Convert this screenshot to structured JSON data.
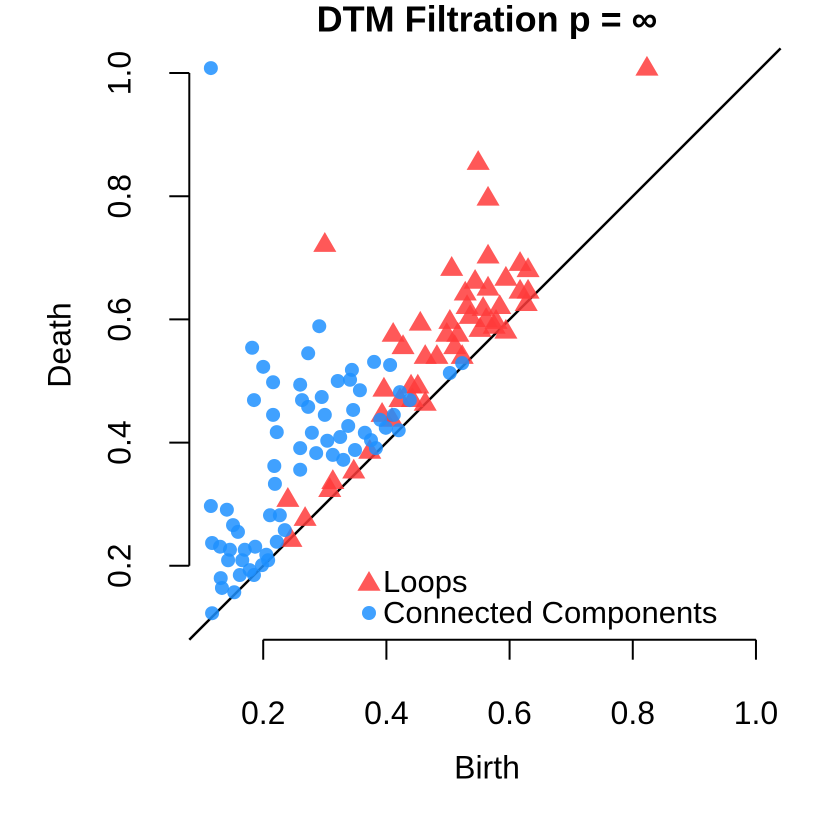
{
  "chart_data": {
    "type": "scatter",
    "title": "DTM Filtration p = ∞",
    "xlabel": "Birth",
    "ylabel": "Death",
    "xlim": [
      0.08,
      1.04
    ],
    "ylim": [
      0.08,
      1.04
    ],
    "xticks": [
      0.2,
      0.4,
      0.6,
      0.8,
      {
        "value": 1,
        "label": "1.0"
      }
    ],
    "yticks": [
      0.2,
      0.4,
      0.6,
      0.8,
      {
        "value": 1,
        "label": "1.0"
      }
    ],
    "legend": "bottom",
    "series": [
      {
        "name": "Loops",
        "color": "#ff3b3b",
        "marker": "triangle",
        "x": [
          0.823,
          0.549,
          0.565,
          0.3,
          0.565,
          0.506,
          0.617,
          0.544,
          0.594,
          0.63,
          0.528,
          0.565,
          0.617,
          0.63,
          0.531,
          0.557,
          0.584,
          0.627,
          0.503,
          0.536,
          0.562,
          0.578,
          0.455,
          0.411,
          0.427,
          0.498,
          0.516,
          0.552,
          0.575,
          0.511,
          0.482,
          0.463,
          0.523,
          0.396,
          0.44,
          0.451,
          0.422,
          0.442,
          0.463,
          0.393,
          0.409,
          0.373,
          0.347,
          0.313,
          0.308,
          0.268,
          0.24,
          0.245,
          0.594
        ],
        "values": [
          1.01,
          0.857,
          0.799,
          0.724,
          0.705,
          0.685,
          0.693,
          0.664,
          0.669,
          0.683,
          0.645,
          0.653,
          0.648,
          0.648,
          0.623,
          0.62,
          0.623,
          0.628,
          0.599,
          0.607,
          0.602,
          0.599,
          0.596,
          0.578,
          0.558,
          0.578,
          0.578,
          0.586,
          0.591,
          0.558,
          0.542,
          0.542,
          0.542,
          0.489,
          0.494,
          0.494,
          0.472,
          0.472,
          0.466,
          0.448,
          0.44,
          0.388,
          0.356,
          0.339,
          0.326,
          0.279,
          0.31,
          0.245,
          0.583
        ]
      },
      {
        "name": "Connected Components",
        "color": "#1e90ff",
        "marker": "circle",
        "x": [
          0.115,
          0.182,
          0.2,
          0.216,
          0.185,
          0.216,
          0.222,
          0.218,
          0.219,
          0.211,
          0.227,
          0.291,
          0.273,
          0.26,
          0.263,
          0.273,
          0.295,
          0.3,
          0.279,
          0.26,
          0.26,
          0.286,
          0.304,
          0.325,
          0.341,
          0.344,
          0.321,
          0.346,
          0.338,
          0.357,
          0.38,
          0.406,
          0.39,
          0.365,
          0.349,
          0.33,
          0.313,
          0.412,
          0.422,
          0.438,
          0.42,
          0.503,
          0.523,
          0.115,
          0.141,
          0.151,
          0.159,
          0.117,
          0.13,
          0.146,
          0.17,
          0.187,
          0.131,
          0.133,
          0.153,
          0.117,
          0.162,
          0.178,
          0.198,
          0.208,
          0.222,
          0.235,
          0.143,
          0.166,
          0.185,
          0.205,
          0.375,
          0.399,
          0.383
        ],
        "values": [
          1.008,
          0.554,
          0.523,
          0.498,
          0.469,
          0.445,
          0.417,
          0.362,
          0.333,
          0.282,
          0.282,
          0.589,
          0.545,
          0.494,
          0.469,
          0.458,
          0.474,
          0.445,
          0.416,
          0.391,
          0.356,
          0.383,
          0.403,
          0.409,
          0.502,
          0.518,
          0.5,
          0.453,
          0.427,
          0.485,
          0.531,
          0.526,
          0.437,
          0.416,
          0.388,
          0.372,
          0.38,
          0.445,
          0.482,
          0.469,
          0.42,
          0.513,
          0.529,
          0.297,
          0.291,
          0.266,
          0.255,
          0.237,
          0.231,
          0.226,
          0.226,
          0.231,
          0.18,
          0.164,
          0.157,
          0.123,
          0.185,
          0.193,
          0.201,
          0.209,
          0.239,
          0.258,
          0.209,
          0.209,
          0.185,
          0.218,
          0.404,
          0.424,
          0.391
        ]
      }
    ]
  }
}
